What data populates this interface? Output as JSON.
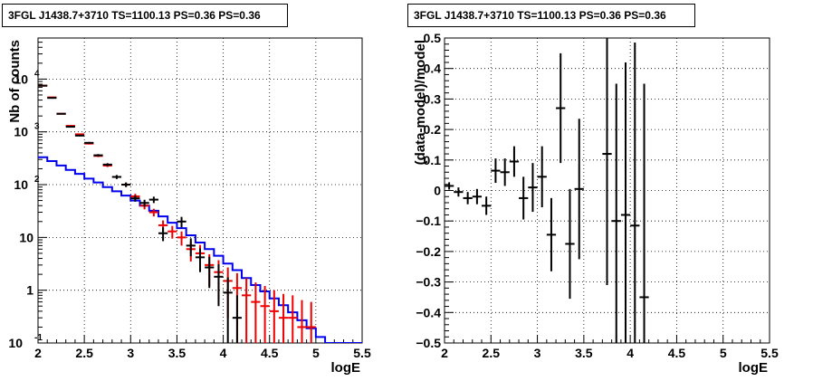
{
  "chart_data": [
    {
      "type": "histogram",
      "title": "3FGL J1438.7+3710 TS=1100.13 PS=0.36 PS=0.36",
      "xlabel": "logE",
      "ylabel": "Nb of counts",
      "xlim": [
        2,
        5.5
      ],
      "ylim": [
        0.1,
        60000
      ],
      "yscale": "log",
      "grid": true,
      "xticks": [
        "2",
        "2.5",
        "3",
        "3.5",
        "4",
        "4.5",
        "5",
        "5.5"
      ],
      "yticks": [
        {
          "value": 0.1,
          "label": "10",
          "exp": "-1"
        },
        {
          "value": 1,
          "label": "1",
          "exp": ""
        },
        {
          "value": 10,
          "label": "10",
          "exp": ""
        },
        {
          "value": 100,
          "label": "10",
          "exp": "2"
        },
        {
          "value": 1000,
          "label": "10",
          "exp": "3"
        },
        {
          "value": 10000,
          "label": "10",
          "exp": "4"
        }
      ],
      "series": [
        {
          "color": "#0000ee",
          "style": "step",
          "x": [
            2.0,
            2.1,
            2.2,
            2.3,
            2.4,
            2.5,
            2.6,
            2.7,
            2.8,
            2.9,
            3.0,
            3.1,
            3.2,
            3.3,
            3.4,
            3.5,
            3.6,
            3.7,
            3.8,
            3.9,
            4.0,
            4.1,
            4.2,
            4.3,
            4.4,
            4.5,
            4.6,
            4.7,
            4.8,
            4.9,
            5.0,
            5.1,
            5.2,
            5.3,
            5.4
          ],
          "values": [
            330,
            280,
            230,
            190,
            160,
            130,
            110,
            90,
            75,
            62,
            50,
            40,
            32,
            25,
            19,
            15,
            11,
            8,
            6,
            4.5,
            3.2,
            2.4,
            1.7,
            1.25,
            0.95,
            0.7,
            0.52,
            0.38,
            0.27,
            0.19,
            0.13,
            0.1,
            0.1,
            0.1,
            0.1
          ]
        },
        {
          "color": "#ee0000",
          "style": "errorbar",
          "x": [
            2.05,
            2.15,
            2.25,
            2.35,
            2.45,
            2.55,
            2.65,
            2.75,
            2.85,
            2.95,
            3.05,
            3.15,
            3.25,
            3.35,
            3.45,
            3.55,
            3.65,
            3.75,
            3.85,
            3.95,
            4.05,
            4.15,
            4.25,
            4.35,
            4.45,
            4.55,
            4.65,
            4.75,
            4.85,
            4.95
          ],
          "values": [
            7500,
            4500,
            2200,
            1300,
            900,
            600,
            350,
            230,
            140,
            100,
            60,
            40,
            30,
            17,
            13,
            10,
            6,
            5,
            3,
            2.2,
            1.5,
            1.1,
            0.8,
            0.6,
            0.5,
            0.4,
            0.3,
            0.3,
            0.2,
            0.2
          ],
          "err": [
            80,
            60,
            45,
            35,
            28,
            22,
            17,
            14,
            11,
            9,
            7,
            6,
            5,
            4,
            3.5,
            3,
            2.5,
            2.2,
            1.8,
            1.5,
            1.2,
            1,
            0.9,
            0.8,
            0.7,
            0.6,
            0.55,
            0.5,
            0.45,
            0.4
          ]
        },
        {
          "color": "#000000",
          "style": "errorbar",
          "x": [
            2.05,
            2.15,
            2.25,
            2.35,
            2.45,
            2.55,
            2.65,
            2.75,
            2.85,
            2.95,
            3.05,
            3.15,
            3.25,
            3.35,
            3.55,
            3.65,
            3.75,
            3.85,
            3.95,
            4.05,
            4.15
          ],
          "values": [
            7500,
            4400,
            2200,
            1250,
            850,
            620,
            360,
            240,
            140,
            100,
            55,
            45,
            52,
            12,
            20,
            7,
            4.2,
            2.7,
            1.8,
            0.9,
            0.3
          ],
          "err": [
            85,
            66,
            47,
            35,
            29,
            25,
            19,
            15,
            12,
            10,
            7.4,
            6.7,
            7.2,
            3.5,
            4.5,
            2.6,
            2.0,
            1.6,
            1.3,
            0.85,
            0.5
          ]
        }
      ]
    },
    {
      "type": "errorbar",
      "title": "3FGL J1438.7+3710 TS=1100.13 PS=0.36 PS=0.36",
      "xlabel": "logE",
      "ylabel": "(data-model)/model",
      "xlim": [
        2,
        5.5
      ],
      "ylim": [
        -0.5,
        0.5
      ],
      "grid": true,
      "xticks": [
        "2",
        "2.5",
        "3",
        "3.5",
        "4",
        "4.5",
        "5",
        "5.5"
      ],
      "yticks": [
        "-0.5",
        "-0.4",
        "-0.3",
        "-0.2",
        "-0.1",
        "0",
        "0.1",
        "0.2",
        "0.3",
        "0.4",
        "0.5"
      ],
      "series": [
        {
          "color": "#000000",
          "x": [
            2.05,
            2.15,
            2.25,
            2.35,
            2.45,
            2.55,
            2.65,
            2.75,
            2.85,
            2.95,
            3.05,
            3.15,
            3.25,
            3.35,
            3.45,
            3.75,
            3.85,
            3.95,
            4.05,
            4.15
          ],
          "values": [
            0.015,
            -0.005,
            -0.025,
            -0.02,
            -0.05,
            0.065,
            0.06,
            0.095,
            -0.025,
            0.01,
            0.045,
            -0.145,
            0.27,
            -0.175,
            0.005,
            0.12,
            -0.1,
            -0.08,
            -0.115,
            -0.35
          ],
          "err": [
            0.012,
            0.015,
            0.02,
            0.025,
            0.03,
            0.04,
            0.045,
            0.05,
            0.07,
            0.08,
            0.1,
            0.12,
            0.18,
            0.18,
            0.23,
            0.43,
            0.45,
            0.5,
            0.6,
            0.7
          ]
        }
      ]
    }
  ]
}
